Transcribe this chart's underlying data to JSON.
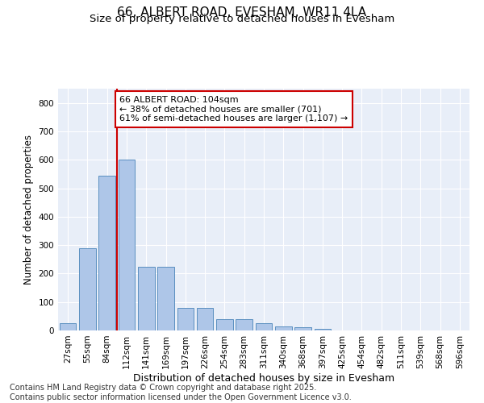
{
  "title": "66, ALBERT ROAD, EVESHAM, WR11 4LA",
  "subtitle": "Size of property relative to detached houses in Evesham",
  "xlabel": "Distribution of detached houses by size in Evesham",
  "ylabel": "Number of detached properties",
  "categories": [
    "27sqm",
    "55sqm",
    "84sqm",
    "112sqm",
    "141sqm",
    "169sqm",
    "197sqm",
    "226sqm",
    "254sqm",
    "283sqm",
    "311sqm",
    "340sqm",
    "368sqm",
    "397sqm",
    "425sqm",
    "454sqm",
    "482sqm",
    "511sqm",
    "539sqm",
    "568sqm",
    "596sqm"
  ],
  "values": [
    25,
    290,
    545,
    600,
    225,
    225,
    80,
    80,
    40,
    40,
    25,
    15,
    10,
    5,
    0,
    0,
    0,
    0,
    0,
    0,
    0
  ],
  "bar_color": "#aec6e8",
  "bar_edge_color": "#5a8fc0",
  "vline_color": "#cc0000",
  "vline_x": 2.5,
  "annotation_text_line1": "66 ALBERT ROAD: 104sqm",
  "annotation_text_line2": "← 38% of detached houses are smaller (701)",
  "annotation_text_line3": "61% of semi-detached houses are larger (1,107) →",
  "annotation_box_color": "#ffffff",
  "annotation_box_edge": "#cc0000",
  "ylim": [
    0,
    850
  ],
  "yticks": [
    0,
    100,
    200,
    300,
    400,
    500,
    600,
    700,
    800
  ],
  "background_color": "#e8eef8",
  "footer_line1": "Contains HM Land Registry data © Crown copyright and database right 2025.",
  "footer_line2": "Contains public sector information licensed under the Open Government Licence v3.0.",
  "title_fontsize": 11,
  "subtitle_fontsize": 9.5,
  "xlabel_fontsize": 9,
  "ylabel_fontsize": 8.5,
  "tick_fontsize": 7.5,
  "annotation_fontsize": 8,
  "footer_fontsize": 7
}
